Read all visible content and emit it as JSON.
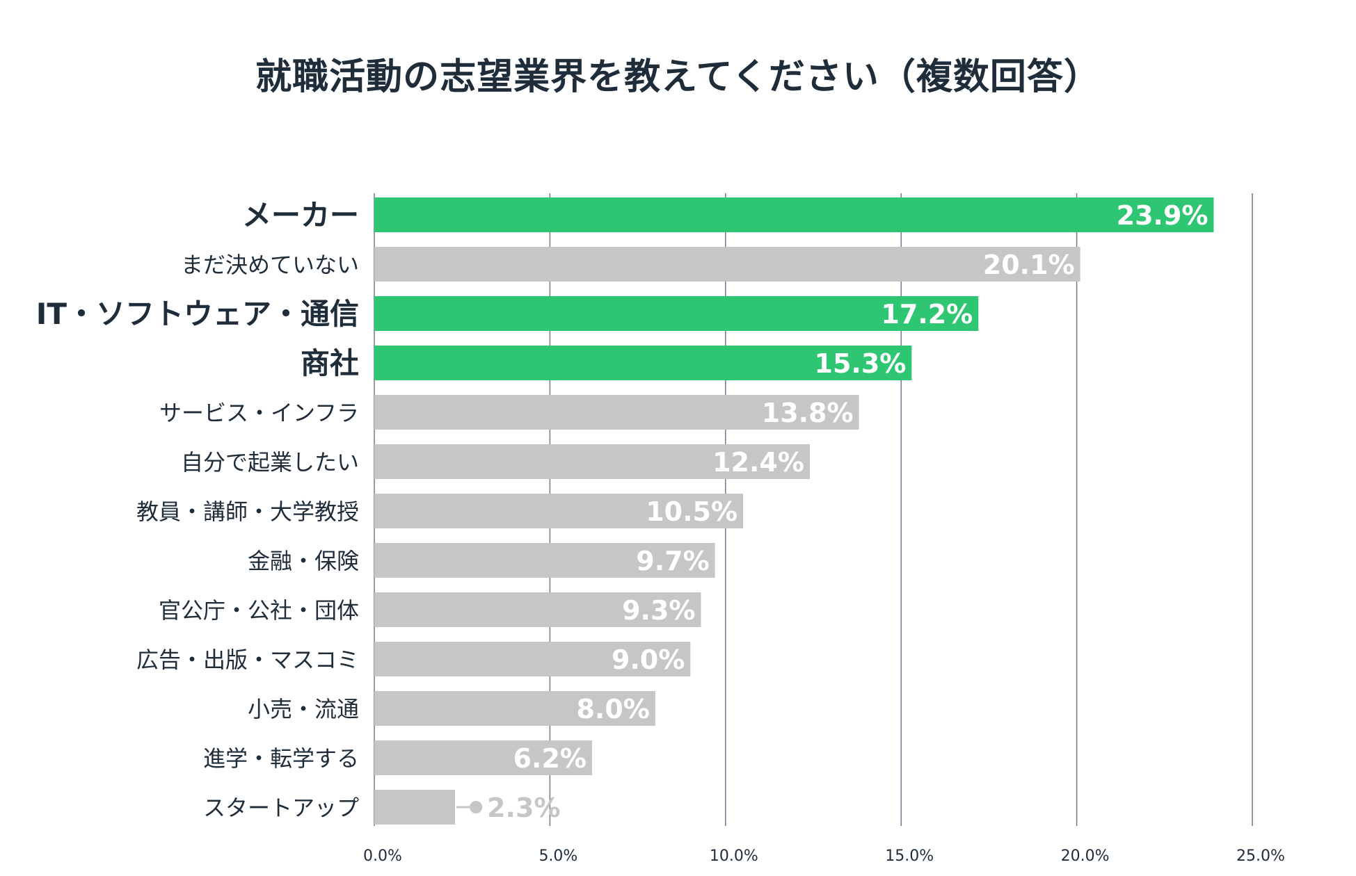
{
  "chart_data": {
    "type": "bar",
    "orientation": "horizontal",
    "title": "就職活動の志望業界を教えてください（複数回答）",
    "xlabel": "",
    "ylabel": "",
    "xlim": [
      0,
      25
    ],
    "grid": true,
    "ticks": [
      "0.0%",
      "5.0%",
      "10.0%",
      "15.0%",
      "20.0%",
      "25.0%"
    ],
    "tick_values": [
      0,
      5,
      10,
      15,
      20,
      25
    ],
    "categories": [
      "メーカー",
      "まだ決めていない",
      "IT・ソフトウェア・通信",
      "商社",
      "サービス・インフラ",
      "自分で起業したい",
      "教員・講師・大学教授",
      "金融・保険",
      "官公庁・公社・団体",
      "広告・出版・マスコミ",
      "小売・流通",
      "進学・転学する",
      "スタートアップ"
    ],
    "values": [
      23.9,
      20.1,
      17.2,
      15.3,
      13.8,
      12.4,
      10.5,
      9.7,
      9.3,
      9.0,
      8.0,
      6.2,
      2.3
    ],
    "labels": [
      "23.9%",
      "20.1%",
      "17.2%",
      "15.3%",
      "13.8%",
      "12.4%",
      "10.5%",
      "9.7%",
      "9.3%",
      "9.0%",
      "8.0%",
      "6.2%",
      "2.3%"
    ],
    "highlight": [
      true,
      false,
      true,
      true,
      false,
      false,
      false,
      false,
      false,
      false,
      false,
      false,
      false
    ],
    "colors": {
      "highlight": "#2ec673",
      "default": "#c6c6c6",
      "grid": "#6b7a8c",
      "label_inside": "#ffffff",
      "label_outside": "#c6c6c6",
      "category_text": "#1f2d3a"
    }
  }
}
